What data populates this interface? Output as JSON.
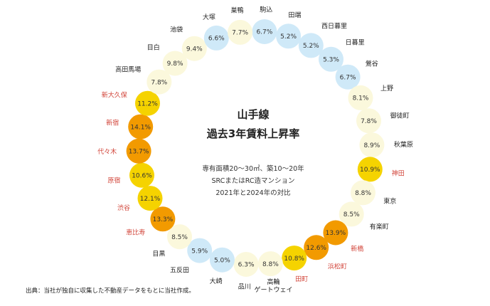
{
  "chart_data": {
    "type": "bubble-ring",
    "title_lines": [
      "山手線",
      "過去3年賃料上昇率"
    ],
    "subtitle_lines": [
      "専有面積20～30㎡、築10～20年",
      "SRCまたはRC造マンション",
      "2021年と2024年の対比"
    ],
    "source": "出典：当社が独自に収集した不動産データをもとに当社作成。",
    "unit": "%",
    "colors": {
      "blue": "#cfe9f8",
      "pale": "#fbf8dc",
      "yellow": "#f5d300",
      "orange": "#f29a00",
      "highlight_label": "#d2453a"
    },
    "stations": [
      {
        "name": "駒込",
        "value": 6.7,
        "color": "blue"
      },
      {
        "name": "田端",
        "value": 5.2,
        "color": "blue"
      },
      {
        "name": "西日暮里",
        "value": 5.2,
        "color": "blue"
      },
      {
        "name": "日暮里",
        "value": 5.3,
        "color": "blue"
      },
      {
        "name": "鶯谷",
        "value": 6.7,
        "color": "blue"
      },
      {
        "name": "上野",
        "value": 8.1,
        "color": "pale"
      },
      {
        "name": "御徒町",
        "value": 7.8,
        "color": "pale"
      },
      {
        "name": "秋葉原",
        "value": 8.9,
        "color": "pale"
      },
      {
        "name": "神田",
        "value": 10.9,
        "color": "yellow",
        "highlight": true
      },
      {
        "name": "東京",
        "value": 8.8,
        "color": "pale"
      },
      {
        "name": "有楽町",
        "value": 8.5,
        "color": "pale"
      },
      {
        "name": "新橋",
        "value": 13.9,
        "color": "orange",
        "highlight": true
      },
      {
        "name": "浜松町",
        "value": 12.6,
        "color": "orange",
        "highlight": true
      },
      {
        "name": "田町",
        "value": 10.8,
        "color": "yellow",
        "highlight": true
      },
      {
        "name": "高輪\nゲートウェイ",
        "value": 8.8,
        "color": "pale"
      },
      {
        "name": "品川",
        "value": 6.3,
        "color": "pale"
      },
      {
        "name": "大崎",
        "value": 5.0,
        "color": "blue"
      },
      {
        "name": "五反田",
        "value": 5.9,
        "color": "blue"
      },
      {
        "name": "目黒",
        "value": 8.5,
        "color": "pale"
      },
      {
        "name": "恵比寿",
        "value": 13.3,
        "color": "orange",
        "highlight": true
      },
      {
        "name": "渋谷",
        "value": 12.1,
        "color": "yellow",
        "highlight": true
      },
      {
        "name": "原宿",
        "value": 10.6,
        "color": "yellow",
        "highlight": true
      },
      {
        "name": "代々木",
        "value": 13.7,
        "color": "orange",
        "highlight": true
      },
      {
        "name": "新宿",
        "value": 14.1,
        "color": "orange",
        "highlight": true
      },
      {
        "name": "新大久保",
        "value": 11.2,
        "color": "yellow",
        "highlight": true
      },
      {
        "name": "高田馬場",
        "value": 7.8,
        "color": "pale"
      },
      {
        "name": "目白",
        "value": 9.8,
        "color": "pale"
      },
      {
        "name": "池袋",
        "value": 9.4,
        "color": "pale"
      },
      {
        "name": "大塚",
        "value": 6.6,
        "color": "blue"
      },
      {
        "name": "巣鴨",
        "value": 7.7,
        "color": "pale"
      }
    ]
  }
}
